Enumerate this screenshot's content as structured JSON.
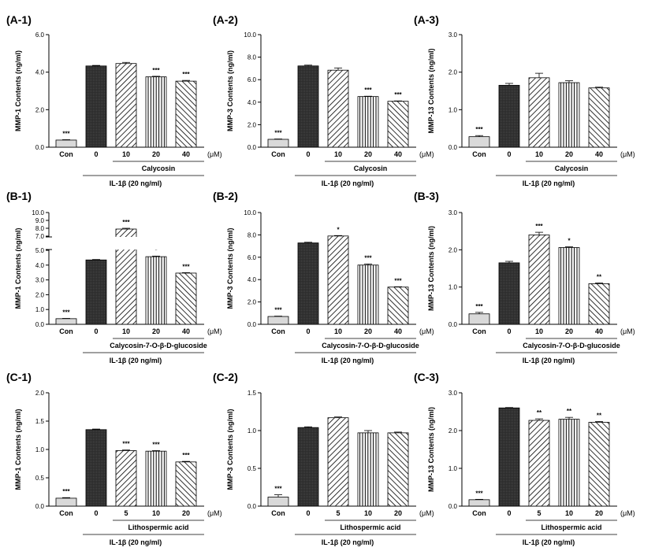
{
  "figure": {
    "colors": {
      "ink": "#000000",
      "dark_bar": "#2b2b2b",
      "light_bar": "#d9d9d9",
      "hatch_bar": "#ffffff"
    },
    "common_labels": {
      "con": "Con",
      "zero": "0",
      "um": "(μM)",
      "il1b": "IL-1β (20 ng/ml)"
    }
  },
  "chart_data": [
    {
      "panel_label": "(A-1)",
      "type": "bar",
      "ylabel": "MMP-1 Contents (ng/ml)",
      "ylim": [
        0,
        6
      ],
      "yticks": [
        "0.0",
        "2.0",
        "4.0",
        "6.0"
      ],
      "categories": [
        "Con",
        "0",
        "10",
        "20",
        "40"
      ],
      "values": [
        0.38,
        4.33,
        4.46,
        3.75,
        3.52
      ],
      "errors": [
        0.02,
        0.03,
        0.06,
        0.03,
        0.04
      ],
      "annotations": [
        "***",
        "",
        "",
        "***",
        "***"
      ],
      "treatment": "Calycosin"
    },
    {
      "panel_label": "(A-2)",
      "type": "bar",
      "ylabel": "MMP-3 Contents (ng/ml)",
      "ylim": [
        0,
        10
      ],
      "yticks": [
        "0.0",
        "2.0",
        "4.0",
        "6.0",
        "8.0",
        "10.0"
      ],
      "categories": [
        "Con",
        "0",
        "10",
        "20",
        "40"
      ],
      "values": [
        0.7,
        7.22,
        6.84,
        4.5,
        4.08
      ],
      "errors": [
        0.03,
        0.07,
        0.2,
        0.03,
        0.03
      ],
      "annotations": [
        "***",
        "",
        "",
        "***",
        "***"
      ],
      "treatment": "Calycosin"
    },
    {
      "panel_label": "(A-3)",
      "type": "bar",
      "ylabel": "MMP-13 Contents (ng/ml)",
      "ylim": [
        0,
        3
      ],
      "yticks": [
        "0.0",
        "1.0",
        "2.0",
        "3.0"
      ],
      "categories": [
        "Con",
        "0",
        "10",
        "20",
        "40"
      ],
      "values": [
        0.28,
        1.65,
        1.85,
        1.72,
        1.58
      ],
      "errors": [
        0.03,
        0.05,
        0.12,
        0.05,
        0.02
      ],
      "annotations": [
        "***",
        "",
        "",
        "",
        ""
      ],
      "treatment": "Calycosin"
    },
    {
      "panel_label": "(B-1)",
      "type": "bar",
      "broken_axis": true,
      "ylabel": "MMP-1 Contents (ng/ml)",
      "yticks_lower": [
        "0.0",
        "1.0",
        "2.0",
        "3.0",
        "4.0",
        "5.0"
      ],
      "yticks_upper": [
        "7.0",
        "8.0",
        "9.0",
        "10.0"
      ],
      "categories": [
        "Con",
        "0",
        "10",
        "20",
        "40"
      ],
      "values": [
        0.38,
        4.35,
        7.9,
        4.57,
        3.46
      ],
      "errors": [
        0.02,
        0.03,
        0.1,
        0.04,
        0.03
      ],
      "annotations": [
        "***",
        "",
        "***",
        "*",
        "***"
      ],
      "treatment": "Calycosin-7-O-β-D-glucoside"
    },
    {
      "panel_label": "(B-2)",
      "type": "bar",
      "ylabel": "MMP-3 Contents (ng/ml)",
      "ylim": [
        0,
        10
      ],
      "yticks": [
        "0.0",
        "2.0",
        "4.0",
        "6.0",
        "8.0",
        "10.0"
      ],
      "categories": [
        "Con",
        "0",
        "10",
        "20",
        "40"
      ],
      "values": [
        0.7,
        7.28,
        7.9,
        5.3,
        3.33
      ],
      "errors": [
        0.03,
        0.06,
        0.04,
        0.1,
        0.03
      ],
      "annotations": [
        "***",
        "",
        "*",
        "***",
        "***"
      ],
      "treatment": "Calycosin-7-O-β-D-glucoside"
    },
    {
      "panel_label": "(B-3)",
      "type": "bar",
      "ylabel": "MMP-13 Contents (ng/ml)",
      "ylim": [
        0,
        3
      ],
      "yticks": [
        "0.0",
        "1.0",
        "2.0",
        "3.0"
      ],
      "categories": [
        "Con",
        "0",
        "10",
        "20",
        "40"
      ],
      "values": [
        0.28,
        1.65,
        2.4,
        2.06,
        1.09
      ],
      "errors": [
        0.04,
        0.04,
        0.07,
        0.02,
        0.02
      ],
      "annotations": [
        "***",
        "",
        "***",
        "*",
        "**"
      ],
      "treatment": "Calycosin-7-O-β-D-glucoside"
    },
    {
      "panel_label": "(C-1)",
      "type": "bar",
      "ylabel": "MMP-1 Contents (ng/ml)",
      "ylim": [
        0,
        2
      ],
      "yticks": [
        "0.0",
        "0.5",
        "1.0",
        "1.5",
        "2.0"
      ],
      "categories": [
        "Con",
        "0",
        "5",
        "10",
        "20"
      ],
      "values": [
        0.14,
        1.35,
        0.98,
        0.97,
        0.78
      ],
      "errors": [
        0.01,
        0.01,
        0.01,
        0.01,
        0.01
      ],
      "annotations": [
        "***",
        "",
        "***",
        "***",
        "***"
      ],
      "treatment": "Lithospermic acid"
    },
    {
      "panel_label": "(C-2)",
      "type": "bar",
      "ylabel": "MMP-3 Contents (ng/ml)",
      "ylim": [
        0,
        1.5
      ],
      "yticks": [
        "0.0",
        "0.5",
        "1.0",
        "1.5"
      ],
      "categories": [
        "Con",
        "0",
        "5",
        "10",
        "20"
      ],
      "values": [
        0.12,
        1.04,
        1.17,
        0.97,
        0.97
      ],
      "errors": [
        0.03,
        0.01,
        0.01,
        0.03,
        0.01
      ],
      "annotations": [
        "***",
        "",
        "",
        "",
        ""
      ],
      "treatment": "Lithospermic acid"
    },
    {
      "panel_label": "(C-3)",
      "type": "bar",
      "ylabel": "MMP-13 Contents (ng/ml)",
      "ylim": [
        0,
        3
      ],
      "yticks": [
        "0.0",
        "1.0",
        "2.0",
        "3.0"
      ],
      "categories": [
        "Con",
        "0",
        "5",
        "10",
        "20"
      ],
      "values": [
        0.17,
        2.6,
        2.27,
        2.3,
        2.22
      ],
      "errors": [
        0.01,
        0.01,
        0.04,
        0.05,
        0.02
      ],
      "annotations": [
        "***",
        "",
        "**",
        "**",
        "**"
      ],
      "treatment": "Lithospermic acid"
    }
  ]
}
